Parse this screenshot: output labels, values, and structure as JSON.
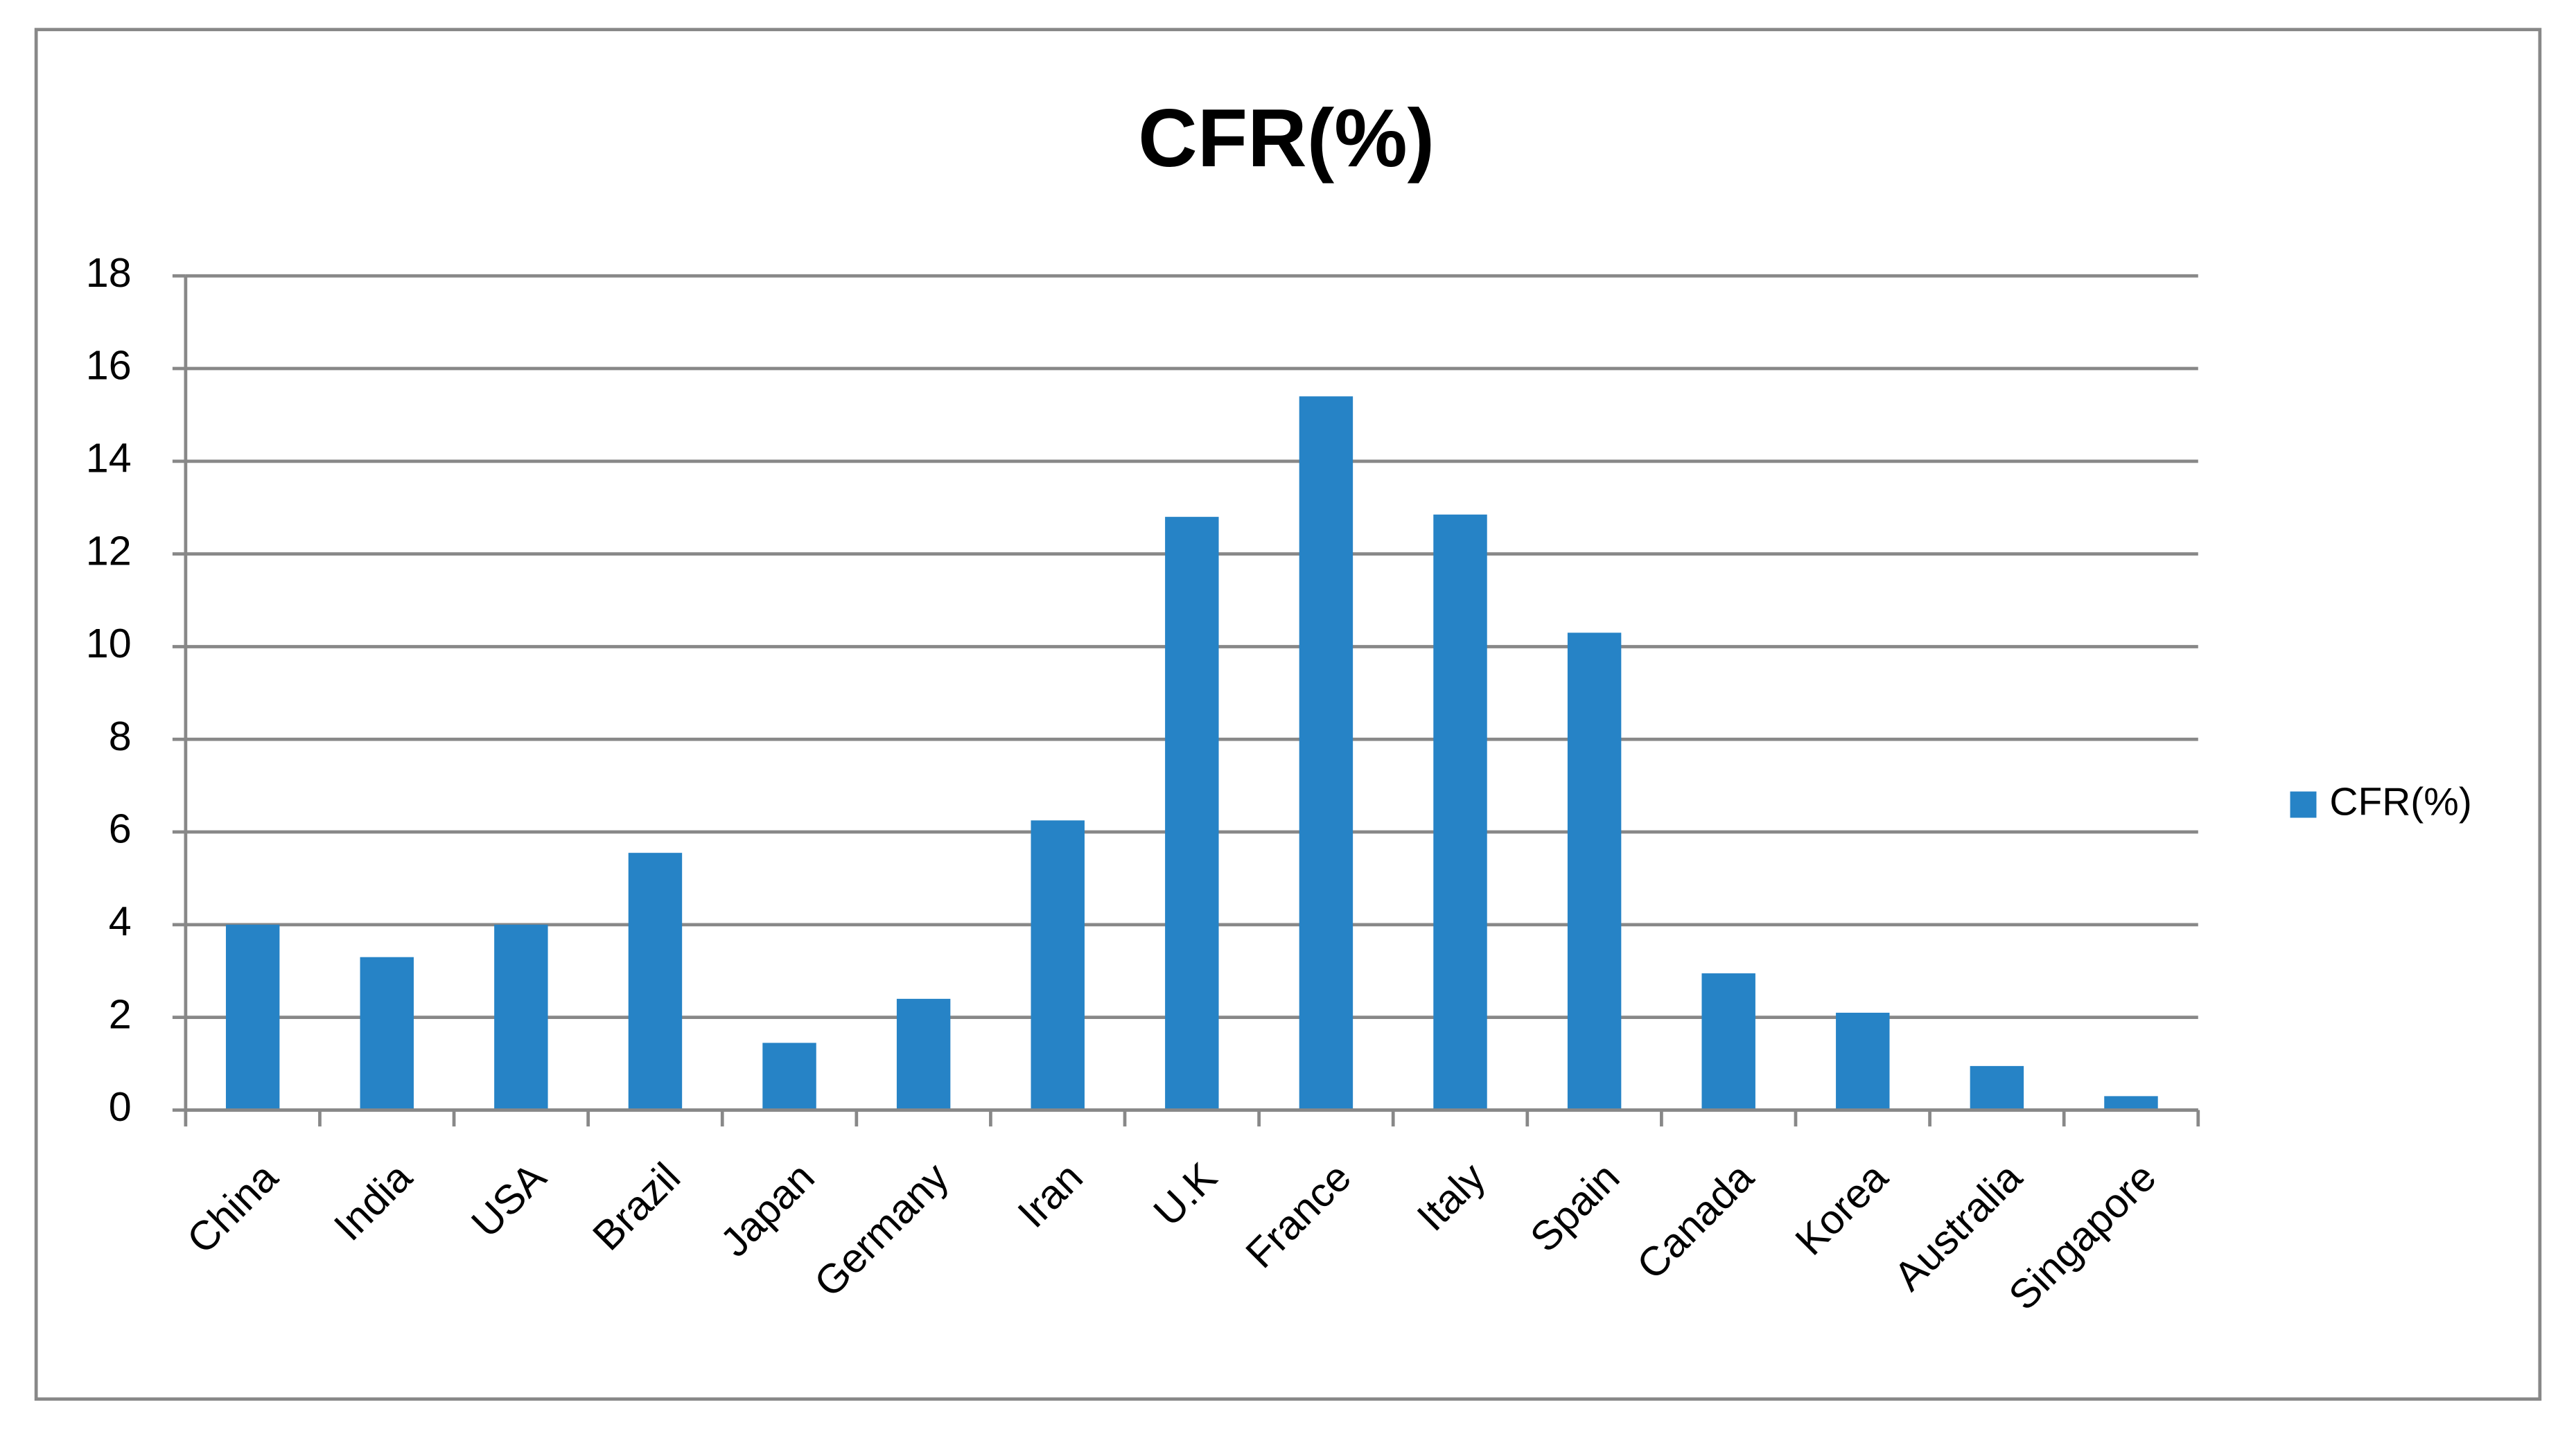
{
  "chart_data": {
    "type": "bar",
    "title": "CFR(%)",
    "categories": [
      "China",
      "India",
      "USA",
      "Brazil",
      "Japan",
      "Germany",
      "Iran",
      "U.K",
      "France",
      "Italy",
      "Spain",
      "Canada",
      "Korea",
      "Australia",
      "Singapore"
    ],
    "series": [
      {
        "name": "CFR(%)",
        "color": "#2683c6",
        "values": [
          4.0,
          3.3,
          4.0,
          5.55,
          1.45,
          2.4,
          6.25,
          12.8,
          15.4,
          12.85,
          10.3,
          2.95,
          2.1,
          0.95,
          0.3
        ]
      }
    ],
    "ylim": [
      0,
      18
    ],
    "yticks": [
      0,
      2,
      4,
      6,
      8,
      10,
      12,
      14,
      16,
      18
    ],
    "grid": true,
    "legend": "right"
  }
}
